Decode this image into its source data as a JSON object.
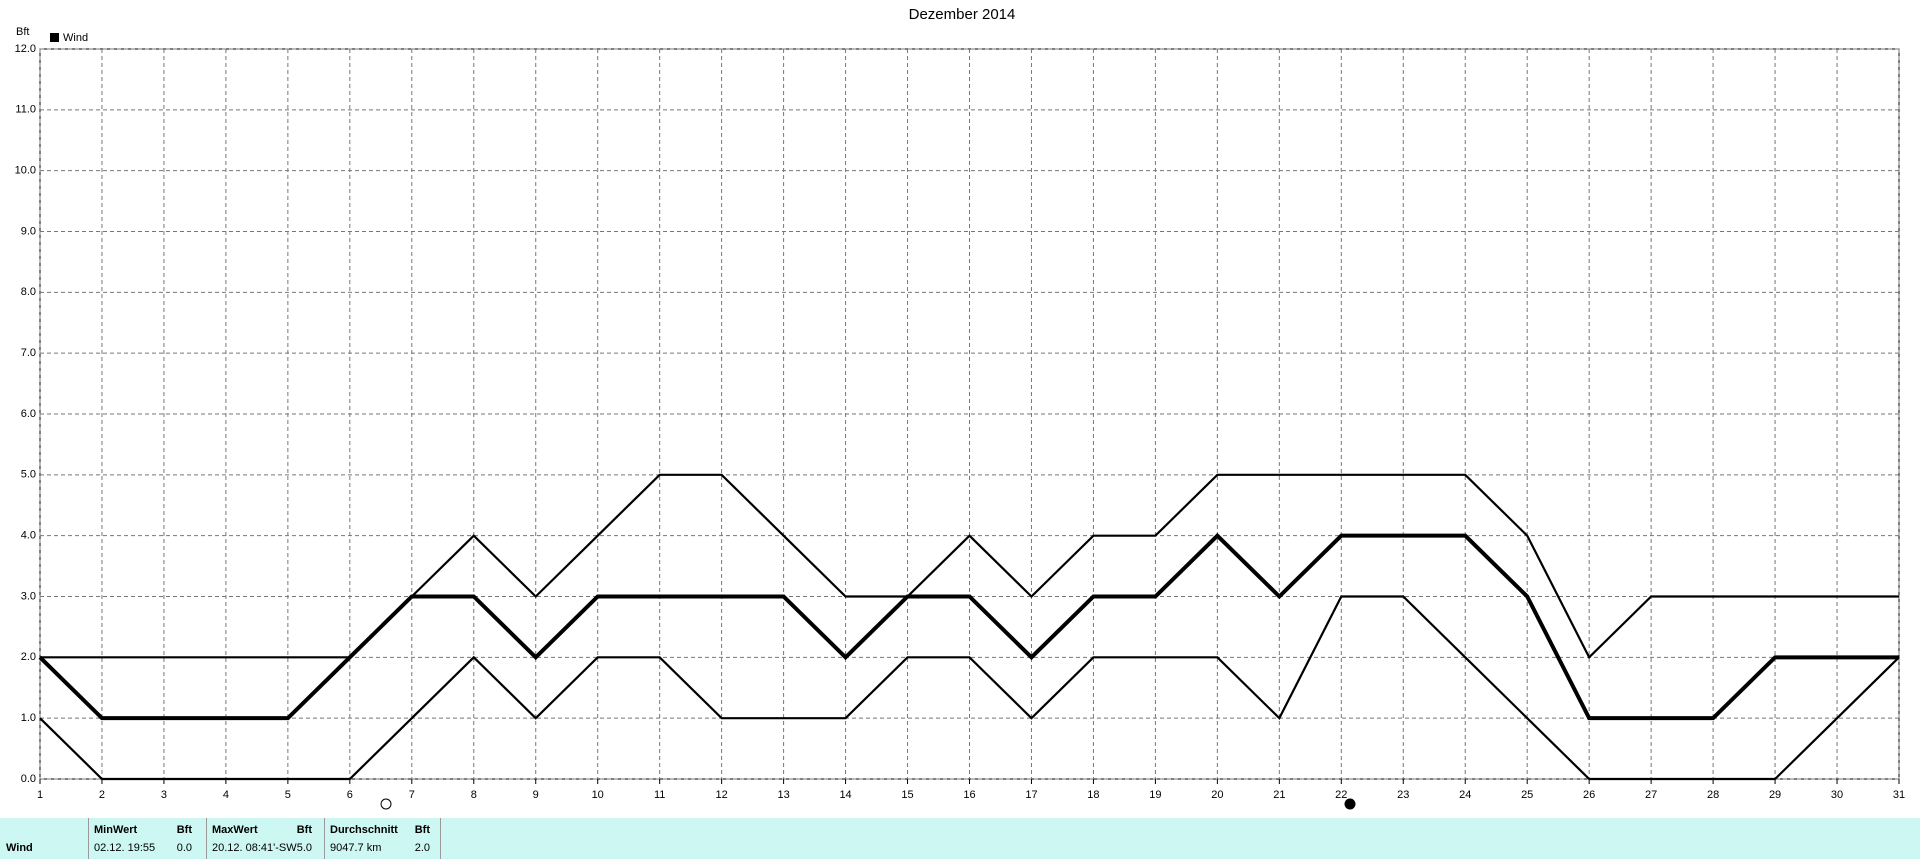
{
  "chart_data": {
    "type": "line",
    "title": "Dezember 2014",
    "y_unit": "Bft",
    "x": [
      1,
      2,
      3,
      4,
      5,
      6,
      7,
      8,
      9,
      10,
      11,
      12,
      13,
      14,
      15,
      16,
      17,
      18,
      19,
      20,
      21,
      22,
      23,
      24,
      25,
      26,
      27,
      28,
      29,
      30,
      31
    ],
    "xlim": [
      1,
      31
    ],
    "ylim": [
      0,
      12
    ],
    "yticks": [
      {
        "value": 0,
        "label": "0.0"
      },
      {
        "value": 1,
        "label": "1.0"
      },
      {
        "value": 2,
        "label": "2.0"
      },
      {
        "value": 3,
        "label": "3.0"
      },
      {
        "value": 4,
        "label": "4.0"
      },
      {
        "value": 5,
        "label": "5.0"
      },
      {
        "value": 6,
        "label": "6.0"
      },
      {
        "value": 7,
        "label": "7.0"
      },
      {
        "value": 8,
        "label": "8.0"
      },
      {
        "value": 9,
        "label": "9.0"
      },
      {
        "value": 10,
        "label": "10.0"
      },
      {
        "value": 11,
        "label": "11.0"
      },
      {
        "value": 12,
        "label": "12.0"
      }
    ],
    "grid": true,
    "legend": "top-left",
    "series": [
      {
        "color": "#000000",
        "values": [
          2,
          2,
          2,
          2,
          2,
          2,
          3,
          4,
          3,
          4,
          5,
          5,
          4,
          3,
          3,
          4,
          3,
          4,
          4,
          5,
          5,
          5,
          5,
          5,
          4,
          2,
          3,
          3,
          3,
          3,
          3
        ]
      },
      {
        "name": "Wind",
        "color": "#000000",
        "values": [
          2,
          1,
          1,
          1,
          1,
          2,
          3,
          3,
          2,
          3,
          3,
          3,
          3,
          2,
          3,
          3,
          2,
          3,
          3,
          4,
          3,
          4,
          4,
          4,
          3,
          1,
          1,
          1,
          2,
          2,
          2
        ]
      },
      {
        "color": "#000000",
        "values": [
          1,
          0,
          0,
          0,
          0,
          0,
          1,
          2,
          1,
          2,
          2,
          1,
          1,
          1,
          2,
          2,
          1,
          2,
          2,
          2,
          1,
          3,
          3,
          2,
          1,
          0,
          0,
          0,
          0,
          1,
          2
        ]
      }
    ]
  },
  "footer": {
    "row_label": "Wind",
    "headers": [
      "MinWert",
      "Bft",
      "MaxWert",
      "Bft",
      "Durchschnitt",
      "Bft"
    ],
    "cells": [
      "02.12.  19:55",
      "0.0",
      "20.12.  08:41'-SW",
      "5.0",
      "9047.7 km",
      "2.0"
    ]
  }
}
